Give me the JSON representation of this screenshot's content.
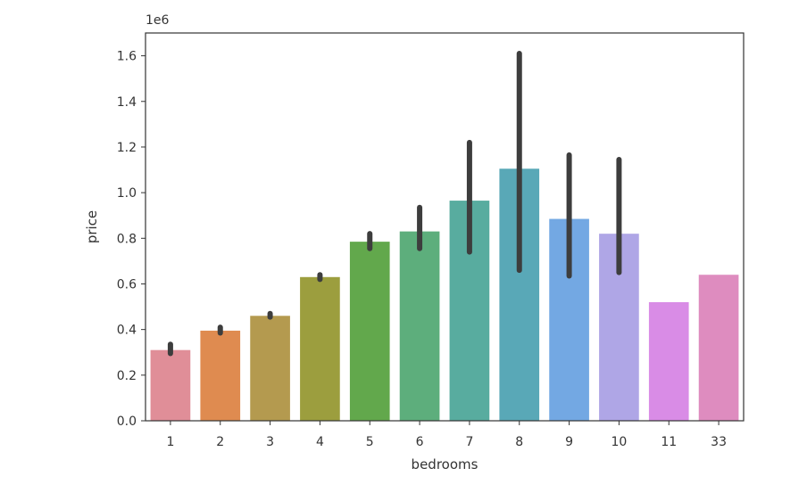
{
  "chart_data": {
    "type": "bar",
    "xlabel": "bedrooms",
    "ylabel": "price",
    "y_offset_label": "1e6",
    "ylim": [
      0.0,
      1.7
    ],
    "yticks": [
      0.0,
      0.2,
      0.4,
      0.6,
      0.8,
      1.0,
      1.2,
      1.4,
      1.6
    ],
    "ytick_labels": [
      "0.0",
      "0.2",
      "0.4",
      "0.6",
      "0.8",
      "1.0",
      "1.2",
      "1.4",
      "1.6"
    ],
    "categories": [
      "1",
      "2",
      "3",
      "4",
      "5",
      "6",
      "7",
      "8",
      "9",
      "10",
      "11",
      "33"
    ],
    "values": [
      0.31,
      0.395,
      0.46,
      0.63,
      0.785,
      0.83,
      0.965,
      1.105,
      0.885,
      0.82,
      0.52,
      0.64
    ],
    "error_low": [
      0.295,
      0.385,
      0.455,
      0.62,
      0.755,
      0.755,
      0.74,
      0.66,
      0.635,
      0.65,
      null,
      null
    ],
    "error_high": [
      0.335,
      0.41,
      0.47,
      0.64,
      0.82,
      0.935,
      1.22,
      1.61,
      1.165,
      1.145,
      null,
      null
    ],
    "colors": [
      "#E08E98",
      "#DF8B50",
      "#B49A4F",
      "#9C9E3E",
      "#62A84C",
      "#5DAE7C",
      "#58AC9F",
      "#59A8B7",
      "#73A8E3",
      "#AFA6E6",
      "#D98CE6",
      "#DE8CBF"
    ],
    "grid": false,
    "legend": "none"
  }
}
